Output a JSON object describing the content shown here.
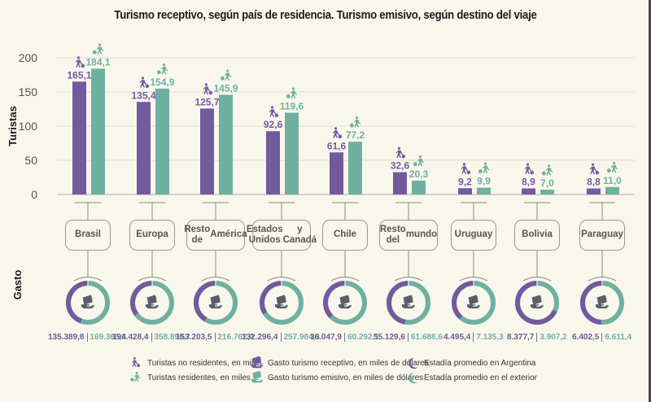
{
  "title": "Turismo receptivo, según país de residencia. Turismo emisivo, según destino del viaje",
  "axis_labels": {
    "turistas": "Turistas",
    "gasto": "Gasto"
  },
  "colors": {
    "purple": "#735a9f",
    "teal": "#6fb0a0",
    "background": "#f9f7ec",
    "grid": "#dedbd0"
  },
  "chart_data": {
    "type": "bar",
    "title": "Turismo receptivo, según país de residencia. Turismo emisivo, según destino del viaje",
    "ylabel": "Turistas",
    "ylim": [
      0,
      200
    ],
    "yticks": [
      "0",
      "50",
      "100",
      "150",
      "200"
    ],
    "grid": true,
    "categories": [
      "Brasil",
      "Europa",
      "Resto de América",
      "Estados Unidos y Canadá",
      "Chile",
      "Resto del mundo",
      "Uruguay",
      "Bolivia",
      "Paraguay"
    ],
    "category_lines": [
      [
        "Brasil"
      ],
      [
        "Europa"
      ],
      [
        "Resto de",
        "América"
      ],
      [
        "Estados Unidos",
        "y Canadá"
      ],
      [
        "Chile"
      ],
      [
        "Resto del",
        "mundo"
      ],
      [
        "Uruguay"
      ],
      [
        "Bolivia"
      ],
      [
        "Paraguay"
      ]
    ],
    "series": [
      {
        "name": "Turistas no residentes, en miles",
        "color": "#735a9f",
        "values": [
          165.1,
          135.4,
          125.7,
          92.6,
          61.6,
          32.6,
          9.2,
          8.9,
          8.8
        ],
        "labels": [
          "165,1",
          "135,4",
          "125,7",
          "92,6",
          "61,6",
          "32,6",
          "9,2",
          "8,9",
          "8,8"
        ]
      },
      {
        "name": "Turistas residentes, en miles",
        "color": "#6fb0a0",
        "values": [
          184.1,
          154.9,
          145.9,
          119.6,
          77.2,
          20.3,
          9.9,
          7.0,
          11.0
        ],
        "labels": [
          "184,1",
          "154,9",
          "145,9",
          "119,6",
          "77,2",
          "20,3",
          "9,9",
          "7,0",
          "11,0"
        ]
      }
    ],
    "gasto": {
      "ylabel": "Gasto",
      "type": "pie",
      "series": [
        {
          "name": "Gasto turismo receptivo, en miles de dólares",
          "color": "#735a9f",
          "values": [
            135389.8,
            194428.4,
            153203.5,
            132296.4,
            36047.9,
            55129.6,
            4495.4,
            8377.7,
            6402.5
          ],
          "labels": [
            "135.389,8",
            "194.428,4",
            "153.203,5",
            "132.296,4",
            "36.047,9",
            "55.129,6",
            "4.495,4",
            "8.377,7",
            "6.402,5"
          ]
        },
        {
          "name": "Gasto turismo emisivo, en miles de dólares",
          "color": "#6fb0a0",
          "values": [
            169365.8,
            358890.7,
            216762.9,
            257984.3,
            60292.1,
            61688.6,
            7135.3,
            3907.2,
            6611.4
          ],
          "labels": [
            "169.365,8",
            "358.890,7",
            "216.762,9",
            "257.984,3",
            "60.292,1",
            "61.688,6",
            "7.135,3",
            "3.907,2",
            "6.611,4"
          ]
        }
      ]
    }
  },
  "legend": [
    {
      "icon": "walking-tourist-luggage-icon",
      "color": "#735a9f",
      "label": "Turistas no residentes, en miles"
    },
    {
      "icon": "walking-tourist-luggage-icon",
      "color": "#6fb0a0",
      "label": "Turistas residentes, en miles"
    },
    {
      "icon": "hand-money-icon",
      "color": "#735a9f",
      "label": "Gasto turismo receptivo, en miles de dólares"
    },
    {
      "icon": "hand-money-icon",
      "color": "#6fb0a0",
      "label": "Gasto turismo emisivo, en miles de dólares"
    },
    {
      "icon": "crescent-moon-icon",
      "color": "#735a9f",
      "label": "Estadía promedio en Argentina"
    },
    {
      "icon": "crescent-moon-icon",
      "color": "#6fb0a0",
      "label": "Estadía promedio en el exterior"
    }
  ]
}
